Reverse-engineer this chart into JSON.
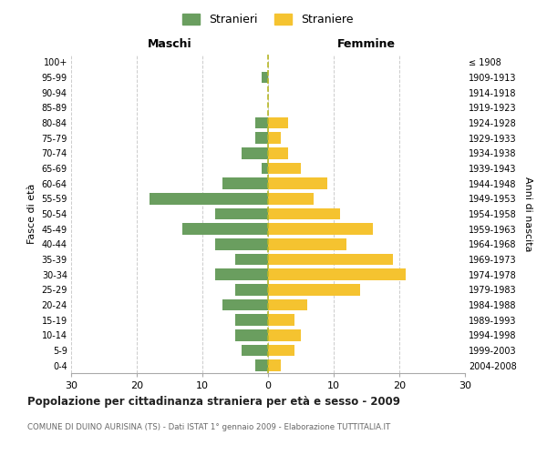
{
  "age_groups": [
    "0-4",
    "5-9",
    "10-14",
    "15-19",
    "20-24",
    "25-29",
    "30-34",
    "35-39",
    "40-44",
    "45-49",
    "50-54",
    "55-59",
    "60-64",
    "65-69",
    "70-74",
    "75-79",
    "80-84",
    "85-89",
    "90-94",
    "95-99",
    "100+"
  ],
  "birth_years": [
    "2004-2008",
    "1999-2003",
    "1994-1998",
    "1989-1993",
    "1984-1988",
    "1979-1983",
    "1974-1978",
    "1969-1973",
    "1964-1968",
    "1959-1963",
    "1954-1958",
    "1949-1953",
    "1944-1948",
    "1939-1943",
    "1934-1938",
    "1929-1933",
    "1924-1928",
    "1919-1923",
    "1914-1918",
    "1909-1913",
    "≤ 1908"
  ],
  "maschi": [
    2,
    4,
    5,
    5,
    7,
    5,
    8,
    5,
    8,
    13,
    8,
    18,
    7,
    1,
    4,
    2,
    2,
    0,
    0,
    1,
    0
  ],
  "femmine": [
    2,
    4,
    5,
    4,
    6,
    14,
    21,
    19,
    12,
    16,
    11,
    7,
    9,
    5,
    3,
    2,
    3,
    0,
    0,
    0,
    0
  ],
  "maschi_color": "#6a9e5f",
  "femmine_color": "#f5c330",
  "title": "Popolazione per cittadinanza straniera per età e sesso - 2009",
  "subtitle": "COMUNE DI DUINO AURISINA (TS) - Dati ISTAT 1° gennaio 2009 - Elaborazione TUTTITALIA.IT",
  "xlabel_left": "Maschi",
  "xlabel_right": "Femmine",
  "ylabel_left": "Fasce di età",
  "ylabel_right": "Anni di nascita",
  "legend_maschi": "Stranieri",
  "legend_femmine": "Straniere",
  "xlim": 30,
  "background_color": "#ffffff",
  "grid_color": "#cccccc",
  "dashed_line_color": "#b8b828"
}
